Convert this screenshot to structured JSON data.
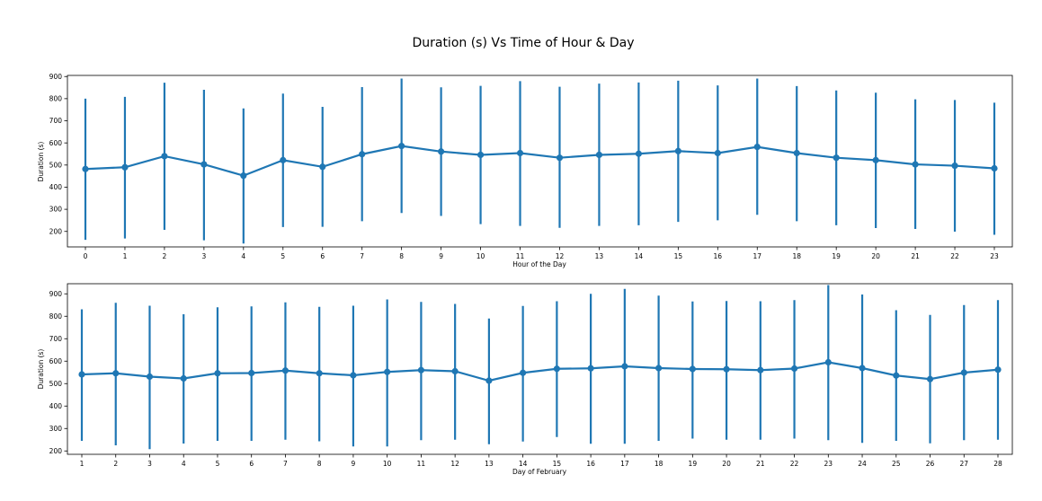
{
  "figure": {
    "title": "Duration (s) Vs Time of Hour & Day"
  },
  "colors": {
    "series": "#1f77b4",
    "axes": "#000000",
    "background": "#ffffff"
  },
  "chart_data": [
    {
      "type": "line",
      "subtype": "pointplot-with-error-bars",
      "xlabel": "Hour of the Day",
      "ylabel": "Duration (s)",
      "ylim": [
        130,
        905
      ],
      "yticks": [
        200,
        300,
        400,
        500,
        600,
        700,
        800,
        900
      ],
      "grid": false,
      "legend": "none",
      "categories": [
        "0",
        "1",
        "2",
        "3",
        "4",
        "5",
        "6",
        "7",
        "8",
        "9",
        "10",
        "11",
        "12",
        "13",
        "14",
        "15",
        "16",
        "17",
        "18",
        "19",
        "20",
        "21",
        "22",
        "23"
      ],
      "values": [
        482,
        490,
        540,
        503,
        452,
        522,
        492,
        549,
        586,
        561,
        546,
        554,
        533,
        546,
        551,
        563,
        554,
        582,
        554,
        533,
        522,
        503,
        497,
        485
      ],
      "err_low": [
        162,
        168,
        207,
        160,
        145,
        220,
        221,
        246,
        283,
        270,
        233,
        225,
        216,
        225,
        228,
        243,
        250,
        275,
        246,
        228,
        215,
        211,
        199,
        185
      ],
      "err_high": [
        800,
        808,
        872,
        840,
        756,
        823,
        763,
        852,
        891,
        851,
        858,
        879,
        854,
        868,
        873,
        881,
        860,
        891,
        857,
        837,
        827,
        797,
        794,
        782
      ]
    },
    {
      "type": "line",
      "subtype": "pointplot-with-error-bars",
      "xlabel": "Day of February",
      "ylabel": "Duration (s)",
      "ylim": [
        185,
        945
      ],
      "yticks": [
        200,
        300,
        400,
        500,
        600,
        700,
        800,
        900
      ],
      "grid": false,
      "legend": "none",
      "categories": [
        "1",
        "2",
        "3",
        "4",
        "5",
        "6",
        "7",
        "8",
        "9",
        "10",
        "11",
        "12",
        "13",
        "14",
        "15",
        "16",
        "17",
        "18",
        "19",
        "20",
        "21",
        "22",
        "23",
        "24",
        "25",
        "26",
        "27",
        "28"
      ],
      "values": [
        541,
        546,
        531,
        523,
        546,
        547,
        558,
        546,
        537,
        552,
        560,
        555,
        513,
        548,
        566,
        568,
        577,
        569,
        565,
        564,
        560,
        567,
        595,
        569,
        536,
        520,
        549,
        562
      ],
      "err_low": [
        245,
        225,
        208,
        233,
        245,
        245,
        250,
        243,
        220,
        220,
        248,
        250,
        230,
        242,
        262,
        232,
        232,
        245,
        255,
        250,
        250,
        255,
        248,
        236,
        245,
        234,
        248,
        250
      ],
      "err_high": [
        831,
        860,
        847,
        809,
        840,
        844,
        862,
        842,
        847,
        875,
        864,
        855,
        790,
        846,
        867,
        900,
        922,
        892,
        866,
        868,
        867,
        872,
        939,
        897,
        827,
        806,
        850,
        872
      ]
    }
  ]
}
